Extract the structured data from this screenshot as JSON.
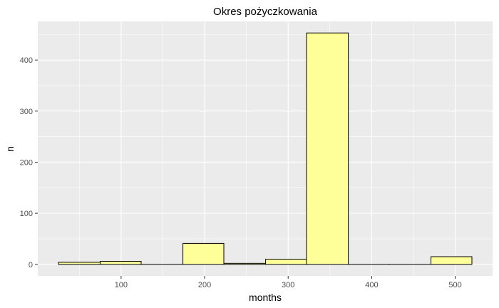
{
  "chart_data": {
    "type": "bar",
    "subtype": "histogram",
    "title": "Okres pożyczkowania",
    "xlabel": "months",
    "ylabel": "n",
    "bins": [
      {
        "x_start": 25,
        "x_end": 75,
        "count": 4
      },
      {
        "x_start": 75,
        "x_end": 124,
        "count": 6
      },
      {
        "x_start": 124,
        "x_end": 174,
        "count": 0
      },
      {
        "x_start": 174,
        "x_end": 223,
        "count": 41
      },
      {
        "x_start": 223,
        "x_end": 273,
        "count": 2
      },
      {
        "x_start": 273,
        "x_end": 322,
        "count": 10
      },
      {
        "x_start": 322,
        "x_end": 372,
        "count": 453
      },
      {
        "x_start": 372,
        "x_end": 421,
        "count": 0
      },
      {
        "x_start": 421,
        "x_end": 471,
        "count": 0
      },
      {
        "x_start": 471,
        "x_end": 520,
        "count": 15
      }
    ],
    "x_ticks": [
      100,
      200,
      300,
      400,
      500
    ],
    "x_tick_labels": [
      "100",
      "200",
      "300",
      "400",
      "500"
    ],
    "y_ticks": [
      0,
      100,
      200,
      300,
      400
    ],
    "y_tick_labels": [
      "0",
      "100",
      "200",
      "300",
      "400"
    ],
    "xlim": [
      0.25,
      544.75
    ],
    "ylim": [
      -22.65,
      475.65
    ],
    "grid": true,
    "legend": "none",
    "colors": {
      "fill": "#FFFF99",
      "stroke": "#000000",
      "panel": "#EBEBEB",
      "grid_major": "#FFFFFF",
      "tick_text": "#4D4D4D"
    }
  }
}
